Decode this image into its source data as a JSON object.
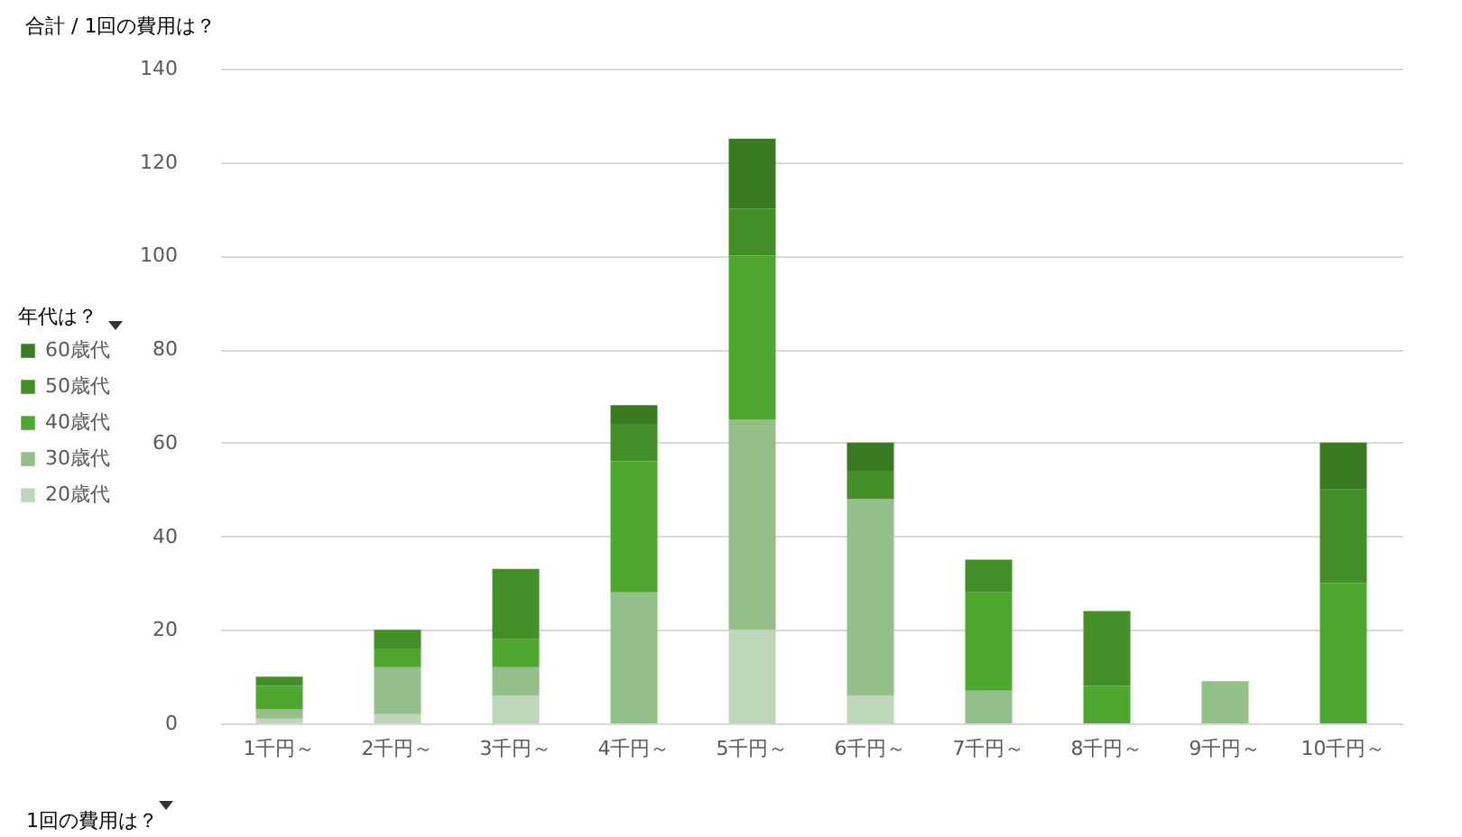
{
  "chart_data": {
    "type": "bar",
    "title": "合計 / 1回の費用は？",
    "xlabel": "1回の費用は？",
    "legend_title": "年代は？",
    "stacked": true,
    "categories": [
      "1千円～",
      "2千円～",
      "3千円～",
      "4千円～",
      "5千円～",
      "6千円～",
      "7千円～",
      "8千円～",
      "9千円～",
      "10千円～"
    ],
    "series": [
      {
        "name": "20歳代",
        "color": "#bdd7b8",
        "values": [
          1,
          2,
          6,
          0,
          20,
          6,
          0,
          0,
          0,
          0
        ]
      },
      {
        "name": "30歳代",
        "color": "#93c089",
        "values": [
          2,
          10,
          6,
          28,
          45,
          42,
          7,
          0,
          9,
          0
        ]
      },
      {
        "name": "40歳代",
        "color": "#4ea72e",
        "values": [
          5,
          4,
          6,
          28,
          35,
          0,
          21,
          8,
          0,
          30
        ]
      },
      {
        "name": "50歳代",
        "color": "#448f28",
        "values": [
          2,
          4,
          15,
          8,
          10,
          6,
          7,
          16,
          0,
          20
        ]
      },
      {
        "name": "60歳代",
        "color": "#3a7a20",
        "values": [
          0,
          0,
          0,
          4,
          15,
          6,
          0,
          0,
          0,
          10
        ]
      }
    ],
    "ylim": [
      0,
      140
    ],
    "yticks": [
      0,
      20,
      40,
      60,
      80,
      100,
      120,
      140
    ],
    "grid": "y",
    "legend": "left"
  }
}
